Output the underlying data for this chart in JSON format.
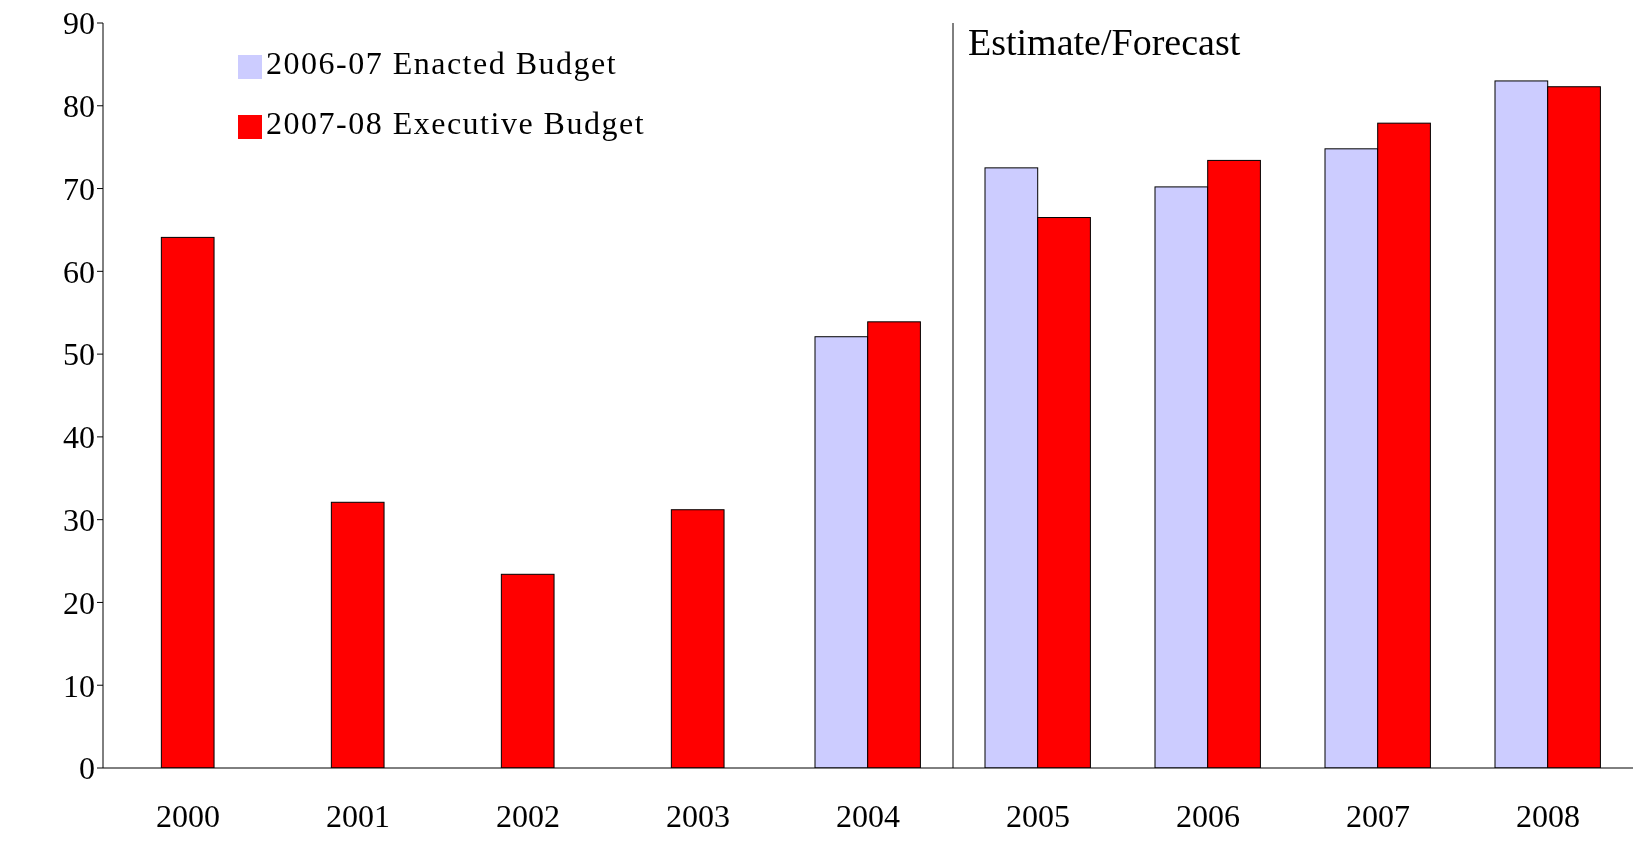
{
  "chart_data": {
    "type": "bar",
    "x": [
      2000,
      2001,
      2002,
      2003,
      2004,
      2005,
      2006,
      2007,
      2008
    ],
    "xlim": [
      1999.5,
      2008.5
    ],
    "xticks": [
      2000,
      2001,
      2002,
      2003,
      2004,
      2005,
      2006,
      2007,
      2008
    ],
    "ylim": [
      0,
      90
    ],
    "yticks": [
      0,
      10,
      20,
      30,
      40,
      50,
      60,
      70,
      80,
      90
    ],
    "grid": false,
    "legend": "top left",
    "series": [
      {
        "name": "2006-07 Enacted Budget",
        "color": "#ccccff",
        "values": [
          null,
          null,
          null,
          null,
          52.1,
          72.5,
          70.2,
          74.8,
          83.0
        ]
      },
      {
        "name": "2007-08 Executive Budget",
        "color": "#ff0000",
        "values": [
          64.1,
          32.1,
          23.4,
          31.2,
          53.9,
          66.5,
          73.4,
          77.9,
          82.3
        ]
      }
    ],
    "ref_lines": [
      {
        "axis": "x",
        "value": 2004.5,
        "label": "Estimate/Forecast",
        "color": "#000000"
      }
    ]
  }
}
